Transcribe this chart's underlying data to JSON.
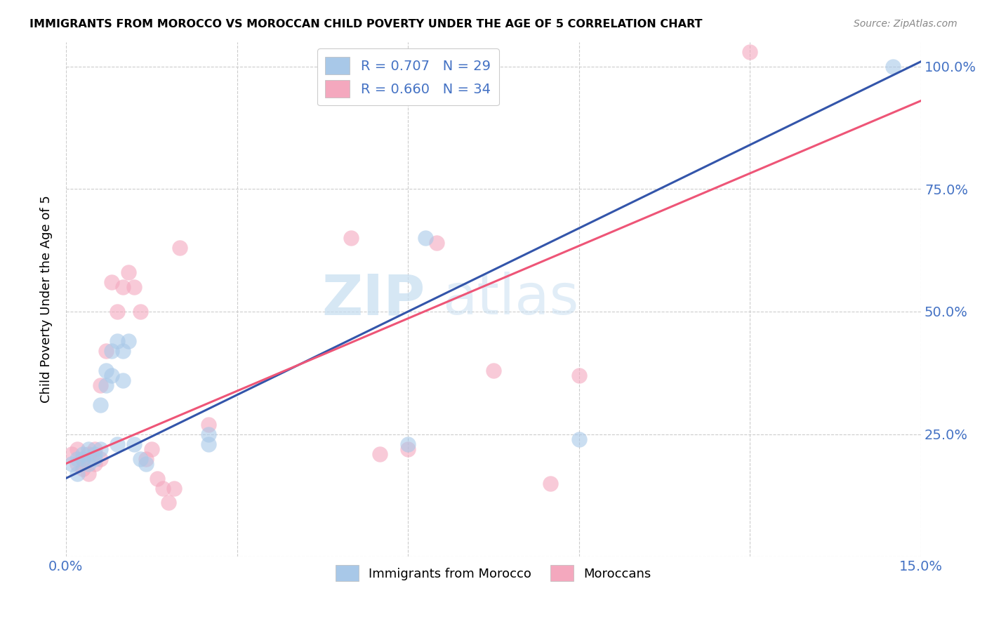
{
  "title": "IMMIGRANTS FROM MOROCCO VS MOROCCAN CHILD POVERTY UNDER THE AGE OF 5 CORRELATION CHART",
  "source": "Source: ZipAtlas.com",
  "ylabel": "Child Poverty Under the Age of 5",
  "xlim": [
    0.0,
    0.15
  ],
  "ylim": [
    0.0,
    1.05
  ],
  "xtick_positions": [
    0.0,
    0.03,
    0.06,
    0.09,
    0.12,
    0.15
  ],
  "xtick_labels": [
    "0.0%",
    "",
    "",
    "",
    "",
    "15.0%"
  ],
  "ytick_positions": [
    0.0,
    0.25,
    0.5,
    0.75,
    1.0
  ],
  "ytick_labels": [
    "",
    "25.0%",
    "50.0%",
    "75.0%",
    "100.0%"
  ],
  "blue_R": "0.707",
  "blue_N": "29",
  "pink_R": "0.660",
  "pink_N": "34",
  "blue_color": "#a8c8e8",
  "pink_color": "#f4a8be",
  "blue_line_color": "#3355aa",
  "pink_line_color": "#ee5577",
  "tick_color": "#4472c4",
  "legend_label_blue": "Immigrants from Morocco",
  "legend_label_pink": "Moroccans",
  "watermark_zip": "ZIP",
  "watermark_atlas": "atlas",
  "blue_scatter_x": [
    0.001,
    0.002,
    0.002,
    0.003,
    0.003,
    0.004,
    0.004,
    0.005,
    0.005,
    0.006,
    0.006,
    0.007,
    0.007,
    0.008,
    0.008,
    0.009,
    0.009,
    0.01,
    0.01,
    0.011,
    0.012,
    0.013,
    0.014,
    0.025,
    0.025,
    0.06,
    0.063,
    0.09,
    0.145
  ],
  "blue_scatter_y": [
    0.19,
    0.17,
    0.2,
    0.21,
    0.2,
    0.22,
    0.19,
    0.21,
    0.2,
    0.22,
    0.31,
    0.35,
    0.38,
    0.37,
    0.42,
    0.44,
    0.23,
    0.36,
    0.42,
    0.44,
    0.23,
    0.2,
    0.19,
    0.25,
    0.23,
    0.23,
    0.65,
    0.24,
    1.0
  ],
  "pink_scatter_x": [
    0.001,
    0.002,
    0.002,
    0.003,
    0.003,
    0.004,
    0.004,
    0.005,
    0.005,
    0.006,
    0.006,
    0.007,
    0.008,
    0.009,
    0.01,
    0.011,
    0.012,
    0.013,
    0.014,
    0.015,
    0.016,
    0.017,
    0.018,
    0.019,
    0.02,
    0.025,
    0.05,
    0.055,
    0.06,
    0.065,
    0.075,
    0.085,
    0.09,
    0.12
  ],
  "pink_scatter_y": [
    0.21,
    0.19,
    0.22,
    0.18,
    0.2,
    0.21,
    0.17,
    0.22,
    0.19,
    0.2,
    0.35,
    0.42,
    0.56,
    0.5,
    0.55,
    0.58,
    0.55,
    0.5,
    0.2,
    0.22,
    0.16,
    0.14,
    0.11,
    0.14,
    0.63,
    0.27,
    0.65,
    0.21,
    0.22,
    0.64,
    0.38,
    0.15,
    0.37,
    1.03
  ],
  "blue_line_x": [
    0.0,
    0.15
  ],
  "blue_line_y": [
    0.16,
    1.01
  ],
  "pink_line_x": [
    0.0,
    0.15
  ],
  "pink_line_y": [
    0.19,
    0.93
  ]
}
